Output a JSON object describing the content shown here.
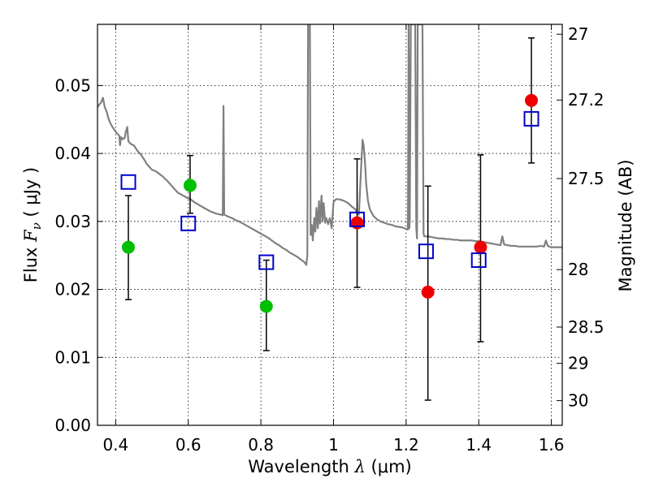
{
  "chart_data": {
    "type": "scatter",
    "xlabel": {
      "text": "Wavelength",
      "symbol": "λ",
      "unit": "(μm)"
    },
    "ylabel": {
      "text": "Flux",
      "symbol": "F",
      "subscript": "ν",
      "unit": "( μJy )"
    },
    "y2label": "Magnitude (AB)",
    "xlim": [
      0.35,
      1.63
    ],
    "ylim": [
      0.0,
      0.059
    ],
    "grid": true,
    "x_ticks": [
      {
        "value": 0.4,
        "label": "0.4"
      },
      {
        "value": 0.6,
        "label": "0.6"
      },
      {
        "value": 0.8,
        "label": "0.8"
      },
      {
        "value": 1.0,
        "label": "1"
      },
      {
        "value": 1.2,
        "label": "1.2"
      },
      {
        "value": 1.4,
        "label": "1.4"
      },
      {
        "value": 1.6,
        "label": "1.6"
      }
    ],
    "y_ticks": [
      {
        "value": 0.0,
        "label": "0.00"
      },
      {
        "value": 0.01,
        "label": "0.01"
      },
      {
        "value": 0.02,
        "label": "0.02"
      },
      {
        "value": 0.03,
        "label": "0.03"
      },
      {
        "value": 0.04,
        "label": "0.04"
      },
      {
        "value": 0.05,
        "label": "0.05"
      }
    ],
    "y2_ticks": [
      {
        "mag": 27.0,
        "label": "27"
      },
      {
        "mag": 27.2,
        "label": "27.2"
      },
      {
        "mag": 27.5,
        "label": "27.5"
      },
      {
        "mag": 28.0,
        "label": "28"
      },
      {
        "mag": 28.5,
        "label": "28.5"
      },
      {
        "mag": 29.0,
        "label": "29"
      },
      {
        "mag": 30.0,
        "label": "30"
      }
    ],
    "series": [
      {
        "name": "model-spectrum",
        "style": "line",
        "color": "#808080",
        "points": [
          [
            0.35,
            0.0468
          ],
          [
            0.355,
            0.0472
          ],
          [
            0.36,
            0.0475
          ],
          [
            0.365,
            0.0482
          ],
          [
            0.37,
            0.0468
          ],
          [
            0.375,
            0.0462
          ],
          [
            0.38,
            0.0452
          ],
          [
            0.385,
            0.0445
          ],
          [
            0.39,
            0.044
          ],
          [
            0.395,
            0.0436
          ],
          [
            0.4,
            0.0432
          ],
          [
            0.405,
            0.0429
          ],
          [
            0.41,
            0.0426
          ],
          [
            0.412,
            0.0412
          ],
          [
            0.415,
            0.0424
          ],
          [
            0.42,
            0.0421
          ],
          [
            0.425,
            0.0423
          ],
          [
            0.428,
            0.0432
          ],
          [
            0.432,
            0.0439
          ],
          [
            0.435,
            0.0418
          ],
          [
            0.44,
            0.0415
          ],
          [
            0.445,
            0.0413
          ],
          [
            0.45,
            0.0412
          ],
          [
            0.455,
            0.0408
          ],
          [
            0.46,
            0.0404
          ],
          [
            0.465,
            0.0401
          ],
          [
            0.47,
            0.0398
          ],
          [
            0.475,
            0.0394
          ],
          [
            0.48,
            0.039
          ],
          [
            0.485,
            0.0385
          ],
          [
            0.49,
            0.0382
          ],
          [
            0.495,
            0.0379
          ],
          [
            0.5,
            0.0376
          ],
          [
            0.505,
            0.0375
          ],
          [
            0.51,
            0.0374
          ],
          [
            0.515,
            0.0372
          ],
          [
            0.52,
            0.037
          ],
          [
            0.525,
            0.0368
          ],
          [
            0.53,
            0.0366
          ],
          [
            0.535,
            0.0363
          ],
          [
            0.54,
            0.0361
          ],
          [
            0.545,
            0.0358
          ],
          [
            0.55,
            0.0355
          ],
          [
            0.555,
            0.0352
          ],
          [
            0.56,
            0.0349
          ],
          [
            0.565,
            0.0346
          ],
          [
            0.57,
            0.0343
          ],
          [
            0.575,
            0.0341
          ],
          [
            0.58,
            0.034
          ],
          [
            0.585,
            0.0338
          ],
          [
            0.59,
            0.0337
          ],
          [
            0.595,
            0.0335
          ],
          [
            0.6,
            0.0334
          ],
          [
            0.605,
            0.0333
          ],
          [
            0.61,
            0.0331
          ],
          [
            0.615,
            0.0329
          ],
          [
            0.62,
            0.0327
          ],
          [
            0.625,
            0.0326
          ],
          [
            0.63,
            0.0324
          ],
          [
            0.64,
            0.0321
          ],
          [
            0.65,
            0.0318
          ],
          [
            0.66,
            0.0315
          ],
          [
            0.67,
            0.0313
          ],
          [
            0.68,
            0.0311
          ],
          [
            0.69,
            0.031
          ],
          [
            0.695,
            0.0309
          ],
          [
            0.697,
            0.047
          ],
          [
            0.699,
            0.031
          ],
          [
            0.71,
            0.0307
          ],
          [
            0.72,
            0.0305
          ],
          [
            0.73,
            0.0302
          ],
          [
            0.74,
            0.03
          ],
          [
            0.75,
            0.0297
          ],
          [
            0.76,
            0.0294
          ],
          [
            0.77,
            0.0291
          ],
          [
            0.78,
            0.0288
          ],
          [
            0.79,
            0.0285
          ],
          [
            0.8,
            0.0282
          ],
          [
            0.81,
            0.0279
          ],
          [
            0.82,
            0.0276
          ],
          [
            0.83,
            0.0272
          ],
          [
            0.84,
            0.0268
          ],
          [
            0.85,
            0.0265
          ],
          [
            0.86,
            0.0261
          ],
          [
            0.87,
            0.0258
          ],
          [
            0.88,
            0.0254
          ],
          [
            0.89,
            0.0251
          ],
          [
            0.9,
            0.0248
          ],
          [
            0.91,
            0.0244
          ],
          [
            0.92,
            0.024
          ],
          [
            0.925,
            0.0236
          ],
          [
            0.928,
            0.025
          ],
          [
            0.93,
            0.059
          ],
          [
            0.935,
            0.059
          ],
          [
            0.937,
            0.028
          ],
          [
            0.94,
            0.0295
          ],
          [
            0.943,
            0.0272
          ],
          [
            0.947,
            0.0305
          ],
          [
            0.95,
            0.0285
          ],
          [
            0.953,
            0.032
          ],
          [
            0.957,
            0.029
          ],
          [
            0.96,
            0.033
          ],
          [
            0.963,
            0.0297
          ],
          [
            0.967,
            0.0338
          ],
          [
            0.97,
            0.03
          ],
          [
            0.973,
            0.0327
          ],
          [
            0.977,
            0.0298
          ],
          [
            0.98,
            0.0305
          ],
          [
            0.985,
            0.0296
          ],
          [
            0.99,
            0.0305
          ],
          [
            0.995,
            0.029
          ],
          [
            1.0,
            0.0328
          ],
          [
            1.005,
            0.0332
          ],
          [
            1.01,
            0.0333
          ],
          [
            1.02,
            0.0332
          ],
          [
            1.03,
            0.033
          ],
          [
            1.04,
            0.0327
          ],
          [
            1.05,
            0.0322
          ],
          [
            1.06,
            0.0318
          ],
          [
            1.065,
            0.0313
          ],
          [
            1.07,
            0.031
          ],
          [
            1.075,
            0.0368
          ],
          [
            1.08,
            0.042
          ],
          [
            1.083,
            0.0412
          ],
          [
            1.087,
            0.0385
          ],
          [
            1.09,
            0.0355
          ],
          [
            1.095,
            0.033
          ],
          [
            1.1,
            0.0318
          ],
          [
            1.11,
            0.0308
          ],
          [
            1.12,
            0.0303
          ],
          [
            1.13,
            0.03
          ],
          [
            1.14,
            0.0298
          ],
          [
            1.15,
            0.0296
          ],
          [
            1.16,
            0.0295
          ],
          [
            1.17,
            0.0293
          ],
          [
            1.18,
            0.0292
          ],
          [
            1.19,
            0.0291
          ],
          [
            1.2,
            0.0289
          ],
          [
            1.205,
            0.0288
          ],
          [
            1.207,
            0.059
          ],
          [
            1.209,
            0.029
          ],
          [
            1.21,
            0.03
          ],
          [
            1.213,
            0.059
          ],
          [
            1.225,
            0.059
          ],
          [
            1.228,
            0.029
          ],
          [
            1.23,
            0.0275
          ],
          [
            1.232,
            0.059
          ],
          [
            1.245,
            0.059
          ],
          [
            1.248,
            0.0282
          ],
          [
            1.25,
            0.0278
          ],
          [
            1.26,
            0.0278
          ],
          [
            1.27,
            0.0277
          ],
          [
            1.28,
            0.0276
          ],
          [
            1.29,
            0.0275
          ],
          [
            1.3,
            0.0275
          ],
          [
            1.31,
            0.0274
          ],
          [
            1.32,
            0.0274
          ],
          [
            1.33,
            0.0273
          ],
          [
            1.34,
            0.0273
          ],
          [
            1.35,
            0.0272
          ],
          [
            1.36,
            0.0272
          ],
          [
            1.37,
            0.0272
          ],
          [
            1.38,
            0.0272
          ],
          [
            1.39,
            0.0271
          ],
          [
            1.4,
            0.0271
          ],
          [
            1.41,
            0.027
          ],
          [
            1.42,
            0.0269
          ],
          [
            1.43,
            0.0268
          ],
          [
            1.44,
            0.0267
          ],
          [
            1.45,
            0.0266
          ],
          [
            1.46,
            0.0265
          ],
          [
            1.465,
            0.0278
          ],
          [
            1.47,
            0.0266
          ],
          [
            1.48,
            0.0265
          ],
          [
            1.49,
            0.0264
          ],
          [
            1.5,
            0.0264
          ],
          [
            1.51,
            0.0263
          ],
          [
            1.52,
            0.0263
          ],
          [
            1.53,
            0.0263
          ],
          [
            1.54,
            0.0263
          ],
          [
            1.55,
            0.0263
          ],
          [
            1.56,
            0.0263
          ],
          [
            1.57,
            0.0264
          ],
          [
            1.58,
            0.0263
          ],
          [
            1.585,
            0.0272
          ],
          [
            1.59,
            0.0264
          ],
          [
            1.6,
            0.0262
          ],
          [
            1.61,
            0.0262
          ],
          [
            1.62,
            0.0262
          ],
          [
            1.63,
            0.0262
          ]
        ]
      },
      {
        "name": "green-observed",
        "style": "filled-circle",
        "color": "#00bf00",
        "points": [
          {
            "x": 0.435,
            "y": 0.0262,
            "yerr": [
              0.0185,
              0.0338
            ]
          },
          {
            "x": 0.605,
            "y": 0.0353,
            "yerr": [
              0.0312,
              0.0397
            ]
          },
          {
            "x": 0.815,
            "y": 0.0175,
            "yerr": [
              0.011,
              0.0243
            ]
          }
        ]
      },
      {
        "name": "red-observed",
        "style": "filled-circle",
        "color": "#ee0000",
        "points": [
          {
            "x": 1.065,
            "y": 0.0298,
            "yerr": [
              0.0203,
              0.0392
            ]
          },
          {
            "x": 1.26,
            "y": 0.0196,
            "yerr": [
              0.0037,
              0.0352
            ]
          },
          {
            "x": 1.405,
            "y": 0.0262,
            "yerr": [
              0.0123,
              0.0398
            ]
          },
          {
            "x": 1.545,
            "y": 0.0478,
            "yerr": [
              0.0386,
              0.057
            ]
          }
        ]
      },
      {
        "name": "model-photometry",
        "style": "open-square",
        "color": "#0000cc",
        "points": [
          {
            "x": 0.435,
            "y": 0.0358
          },
          {
            "x": 0.6,
            "y": 0.0297
          },
          {
            "x": 0.815,
            "y": 0.024
          },
          {
            "x": 1.065,
            "y": 0.0303
          },
          {
            "x": 1.255,
            "y": 0.0256
          },
          {
            "x": 1.4,
            "y": 0.0243
          },
          {
            "x": 1.545,
            "y": 0.0451
          }
        ]
      }
    ]
  }
}
